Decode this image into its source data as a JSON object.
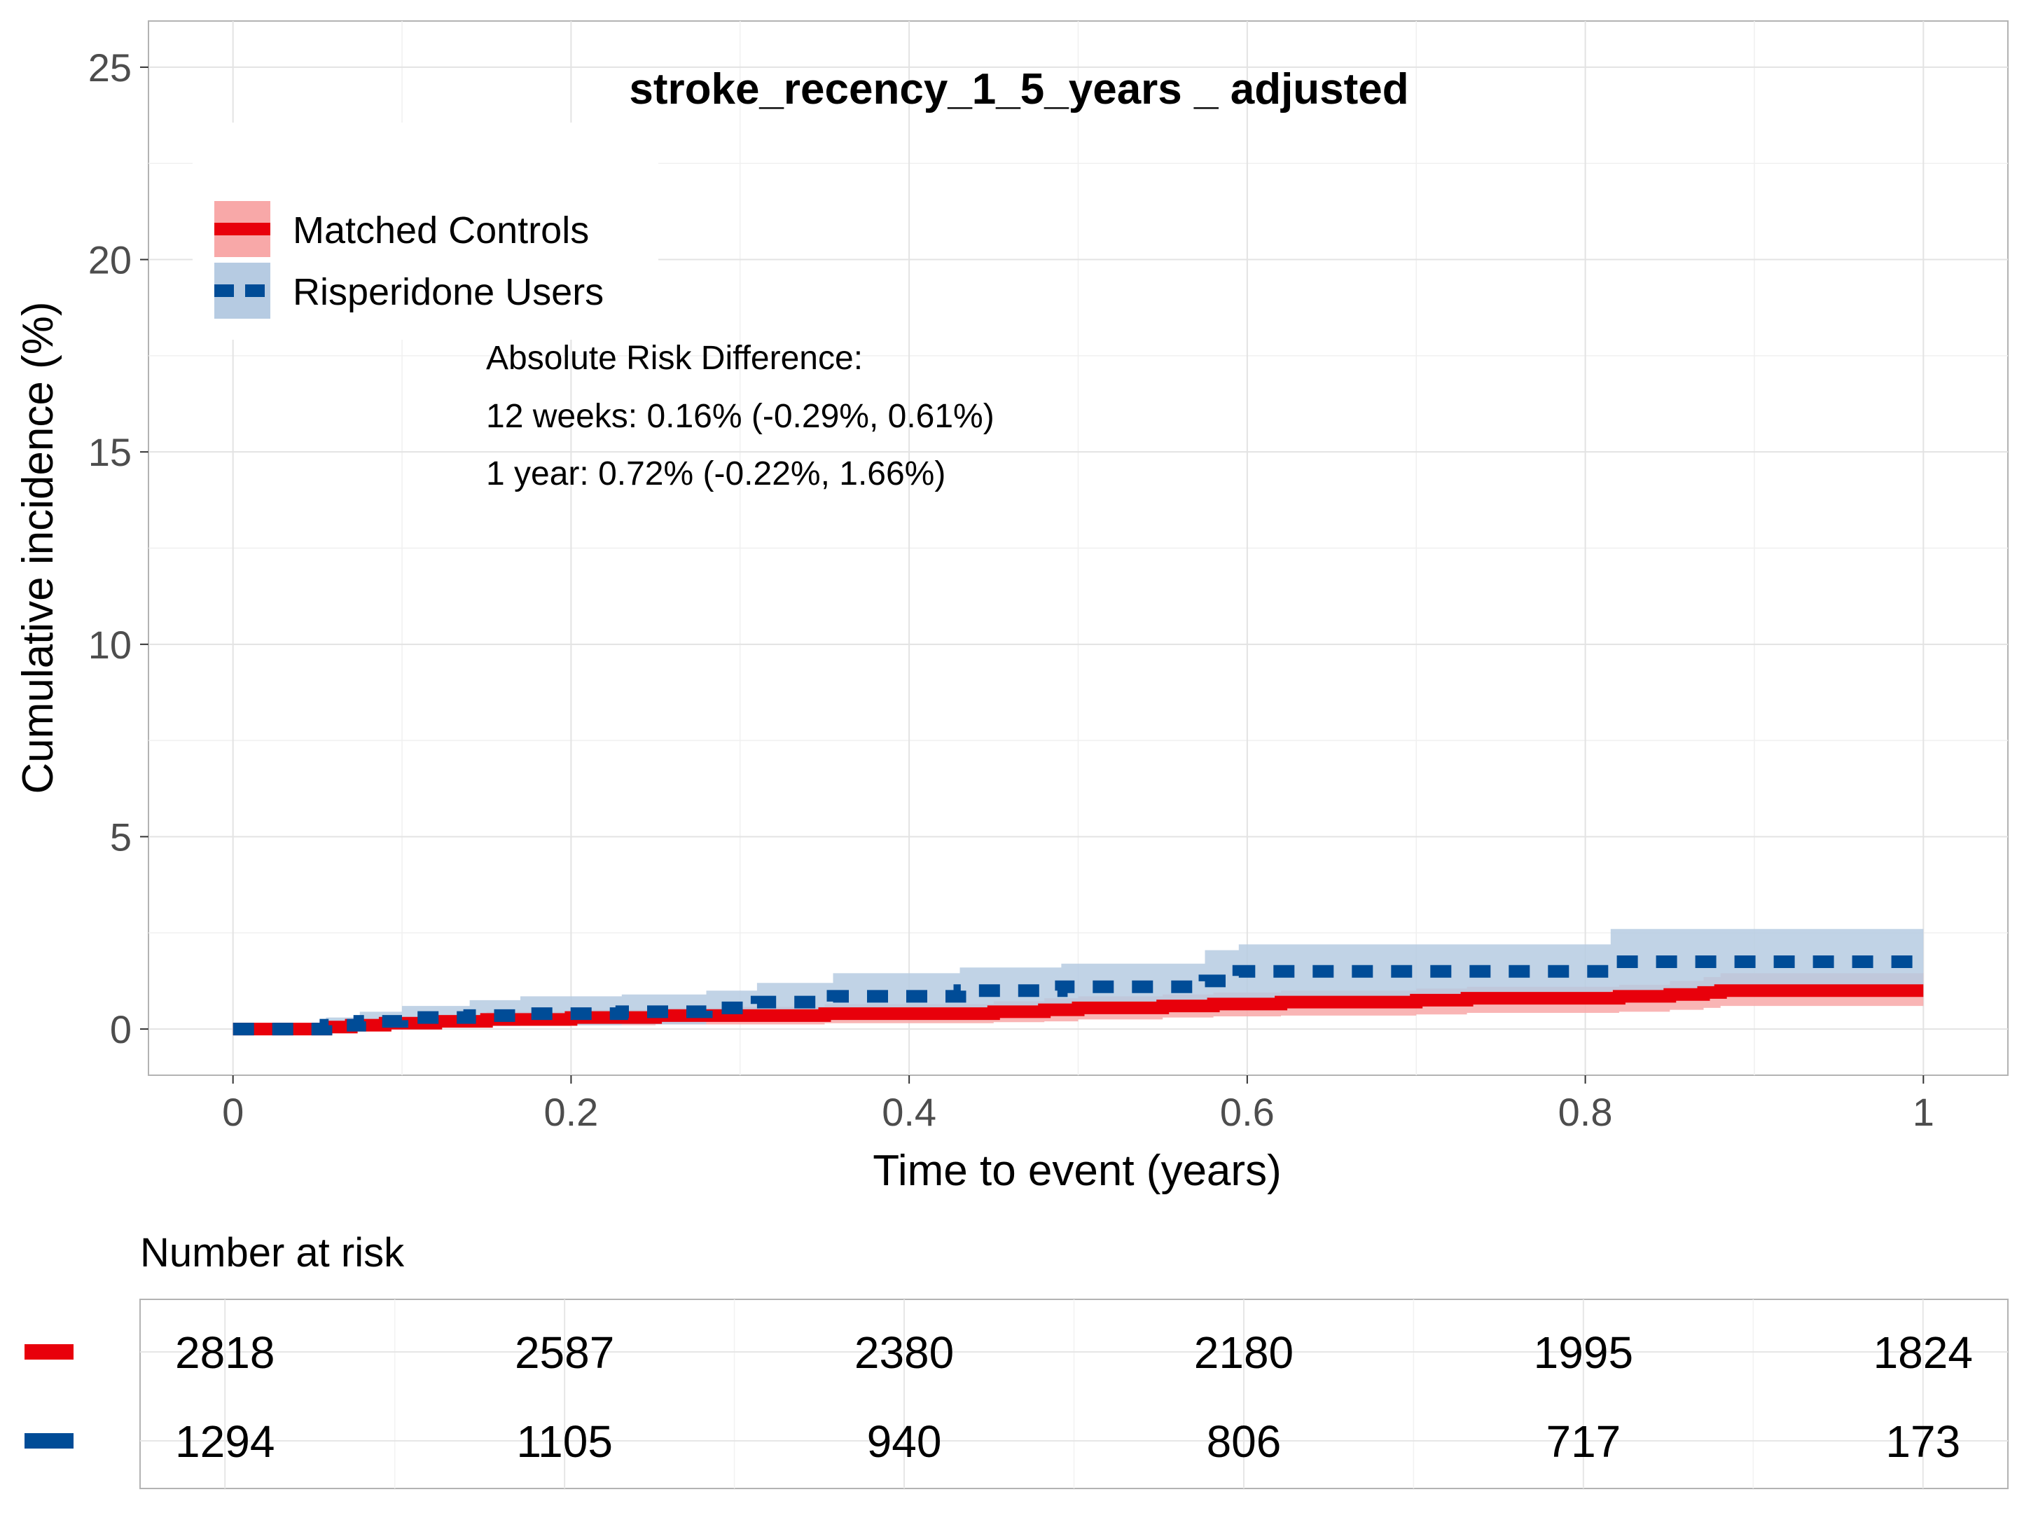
{
  "chart_data": {
    "type": "line",
    "title": "stroke_recency_1_5_years _ adjusted",
    "xlabel": "Time to event (years)",
    "ylabel": "Cumulative incidence (%)",
    "xlim": [
      -0.05,
      1.05
    ],
    "ylim": [
      -1.2,
      26.2
    ],
    "x_ticks": [
      0,
      0.2,
      0.4,
      0.6,
      0.8,
      1
    ],
    "x_tick_labels": [
      "0",
      "0.2",
      "0.4",
      "0.6",
      "0.8",
      "1"
    ],
    "y_ticks": [
      0,
      5,
      10,
      15,
      20,
      25
    ],
    "y_tick_labels": [
      "0",
      "5",
      "10",
      "15",
      "20",
      "25"
    ],
    "grid": true,
    "legend_position": "top-left",
    "series": [
      {
        "name": "Matched Controls",
        "color": "#e8000b",
        "ribbon_color": "#f8a8a8",
        "linestyle": "solid",
        "x": [
          0,
          0.055,
          0.07,
          0.09,
          0.12,
          0.15,
          0.2,
          0.25,
          0.3,
          0.35,
          0.4,
          0.45,
          0.48,
          0.5,
          0.55,
          0.58,
          0.62,
          0.7,
          0.73,
          0.8,
          0.82,
          0.85,
          0.87,
          0.88,
          1.0
        ],
        "y": [
          0,
          0.05,
          0.1,
          0.15,
          0.2,
          0.25,
          0.3,
          0.35,
          0.35,
          0.4,
          0.4,
          0.45,
          0.5,
          0.55,
          0.6,
          0.65,
          0.7,
          0.75,
          0.8,
          0.8,
          0.85,
          0.9,
          0.95,
          1.0,
          1.0
        ],
        "lower": [
          0,
          0,
          0,
          0.02,
          0.05,
          0.08,
          0.1,
          0.12,
          0.12,
          0.15,
          0.15,
          0.18,
          0.2,
          0.25,
          0.3,
          0.33,
          0.35,
          0.38,
          0.42,
          0.42,
          0.45,
          0.5,
          0.55,
          0.6,
          0.6
        ],
        "upper": [
          0,
          0.15,
          0.25,
          0.3,
          0.38,
          0.45,
          0.5,
          0.55,
          0.58,
          0.65,
          0.65,
          0.72,
          0.8,
          0.85,
          0.9,
          0.95,
          1.0,
          1.05,
          1.1,
          1.1,
          1.15,
          1.25,
          1.35,
          1.45,
          1.45
        ]
      },
      {
        "name": "Risperidone Users",
        "color": "#004c97",
        "ribbon_color": "#b6cbe2",
        "linestyle": "dashed",
        "x": [
          0,
          0.055,
          0.075,
          0.1,
          0.14,
          0.17,
          0.23,
          0.28,
          0.31,
          0.355,
          0.43,
          0.49,
          0.575,
          0.595,
          0.81,
          0.815,
          1.0
        ],
        "y": [
          0,
          0.1,
          0.2,
          0.3,
          0.35,
          0.4,
          0.45,
          0.55,
          0.7,
          0.85,
          1.0,
          1.1,
          1.25,
          1.5,
          1.5,
          1.75,
          1.75
        ],
        "lower": [
          0,
          0,
          0,
          0.05,
          0.08,
          0.1,
          0.12,
          0.2,
          0.3,
          0.4,
          0.5,
          0.55,
          0.65,
          0.8,
          0.8,
          1.0,
          1.0
        ],
        "upper": [
          0,
          0.3,
          0.45,
          0.6,
          0.75,
          0.85,
          0.9,
          1.0,
          1.2,
          1.45,
          1.6,
          1.7,
          2.05,
          2.2,
          2.2,
          2.6,
          2.6
        ]
      }
    ],
    "annotation": [
      "Absolute Risk Difference:",
      "12 weeks: 0.16% (-0.29%, 0.61%)",
      "1 year: 0.72% (-0.22%, 1.66%)"
    ],
    "risk_table": {
      "title": "Number at risk",
      "times": [
        0,
        0.2,
        0.4,
        0.6,
        0.8,
        1
      ],
      "rows": [
        {
          "series": "Matched Controls",
          "color": "#e8000b",
          "values": [
            "2818",
            "2587",
            "2380",
            "2180",
            "1995",
            "1824"
          ]
        },
        {
          "series": "Risperidone Users",
          "color": "#004c97",
          "values": [
            "1294",
            "1105",
            "940",
            "806",
            "717",
            "173"
          ]
        }
      ]
    }
  }
}
